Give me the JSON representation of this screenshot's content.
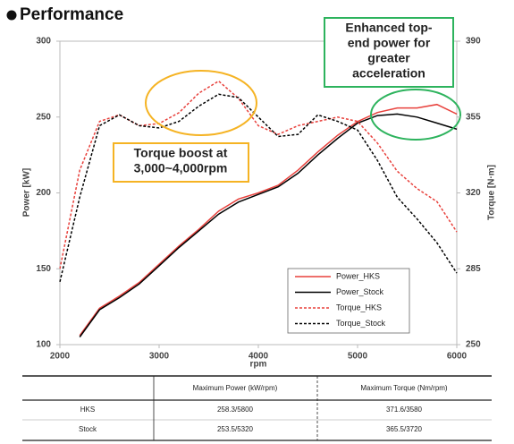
{
  "chart_data": {
    "type": "line",
    "title": "Performance",
    "xlabel": "rpm",
    "ylabel": "Power [kW]",
    "y2label": "Torque [N·m]",
    "x": [
      2000,
      2200,
      2400,
      2600,
      2800,
      3000,
      3200,
      3400,
      3600,
      3800,
      4000,
      4200,
      4400,
      4600,
      4800,
      5000,
      5200,
      5400,
      5600,
      5800,
      6000
    ],
    "xlim": [
      2000,
      6000
    ],
    "xticks": [
      2000,
      3000,
      4000,
      5000,
      6000
    ],
    "ylim": [
      100,
      300
    ],
    "yticks": [
      100,
      150,
      200,
      250,
      300
    ],
    "y2lim": [
      250,
      390
    ],
    "y2ticks": [
      250,
      285,
      320,
      355,
      390
    ],
    "legend": "lower right",
    "series": [
      {
        "name": "Power_HKS",
        "color": "#e8413c",
        "dash": false,
        "values": [
          null,
          106,
          124,
          132,
          141,
          153,
          165,
          176,
          188,
          196,
          200,
          205,
          215,
          227,
          238,
          247,
          253,
          256,
          256,
          258.3,
          252
        ]
      },
      {
        "name": "Power_Stock",
        "color": "#000000",
        "dash": false,
        "values": [
          null,
          105,
          123,
          131,
          140,
          152,
          164,
          175,
          186,
          194,
          199,
          204,
          213,
          225,
          236,
          246,
          251,
          252,
          250,
          246,
          242
        ]
      },
      {
        "name": "Torque_HKS",
        "color": "#e8413c",
        "dash": true,
        "axis": "y2",
        "values": [
          285,
          330.5,
          353,
          356,
          351,
          352,
          357,
          366,
          371.6,
          363.6,
          351,
          347,
          351,
          353,
          355,
          353,
          343,
          330,
          322,
          316,
          302
        ]
      },
      {
        "name": "Torque_Stock",
        "color": "#000000",
        "dash": true,
        "axis": "y2",
        "values": [
          279,
          318,
          351,
          356,
          351,
          350,
          353,
          360,
          365.5,
          364,
          355,
          346,
          347,
          356,
          353,
          349,
          335,
          318,
          308,
          297,
          283
        ]
      }
    ],
    "annotations": [
      {
        "lines": [
          "Torque boost at",
          "3,000~4,000rpm"
        ],
        "color": "#f5b323"
      },
      {
        "lines": [
          "Enhanced top-",
          "end power for",
          "greater",
          "acceleration"
        ],
        "color": "#2db35d"
      }
    ]
  },
  "table": {
    "header": [
      "Maximum Power (kW/rpm)",
      "Maximum Torque (Nm/rpm)"
    ],
    "rows": [
      [
        "HKS",
        "258.3/5800",
        "371.6/3580"
      ],
      [
        "Stock",
        "253.5/5320",
        "365.5/3720"
      ]
    ]
  }
}
